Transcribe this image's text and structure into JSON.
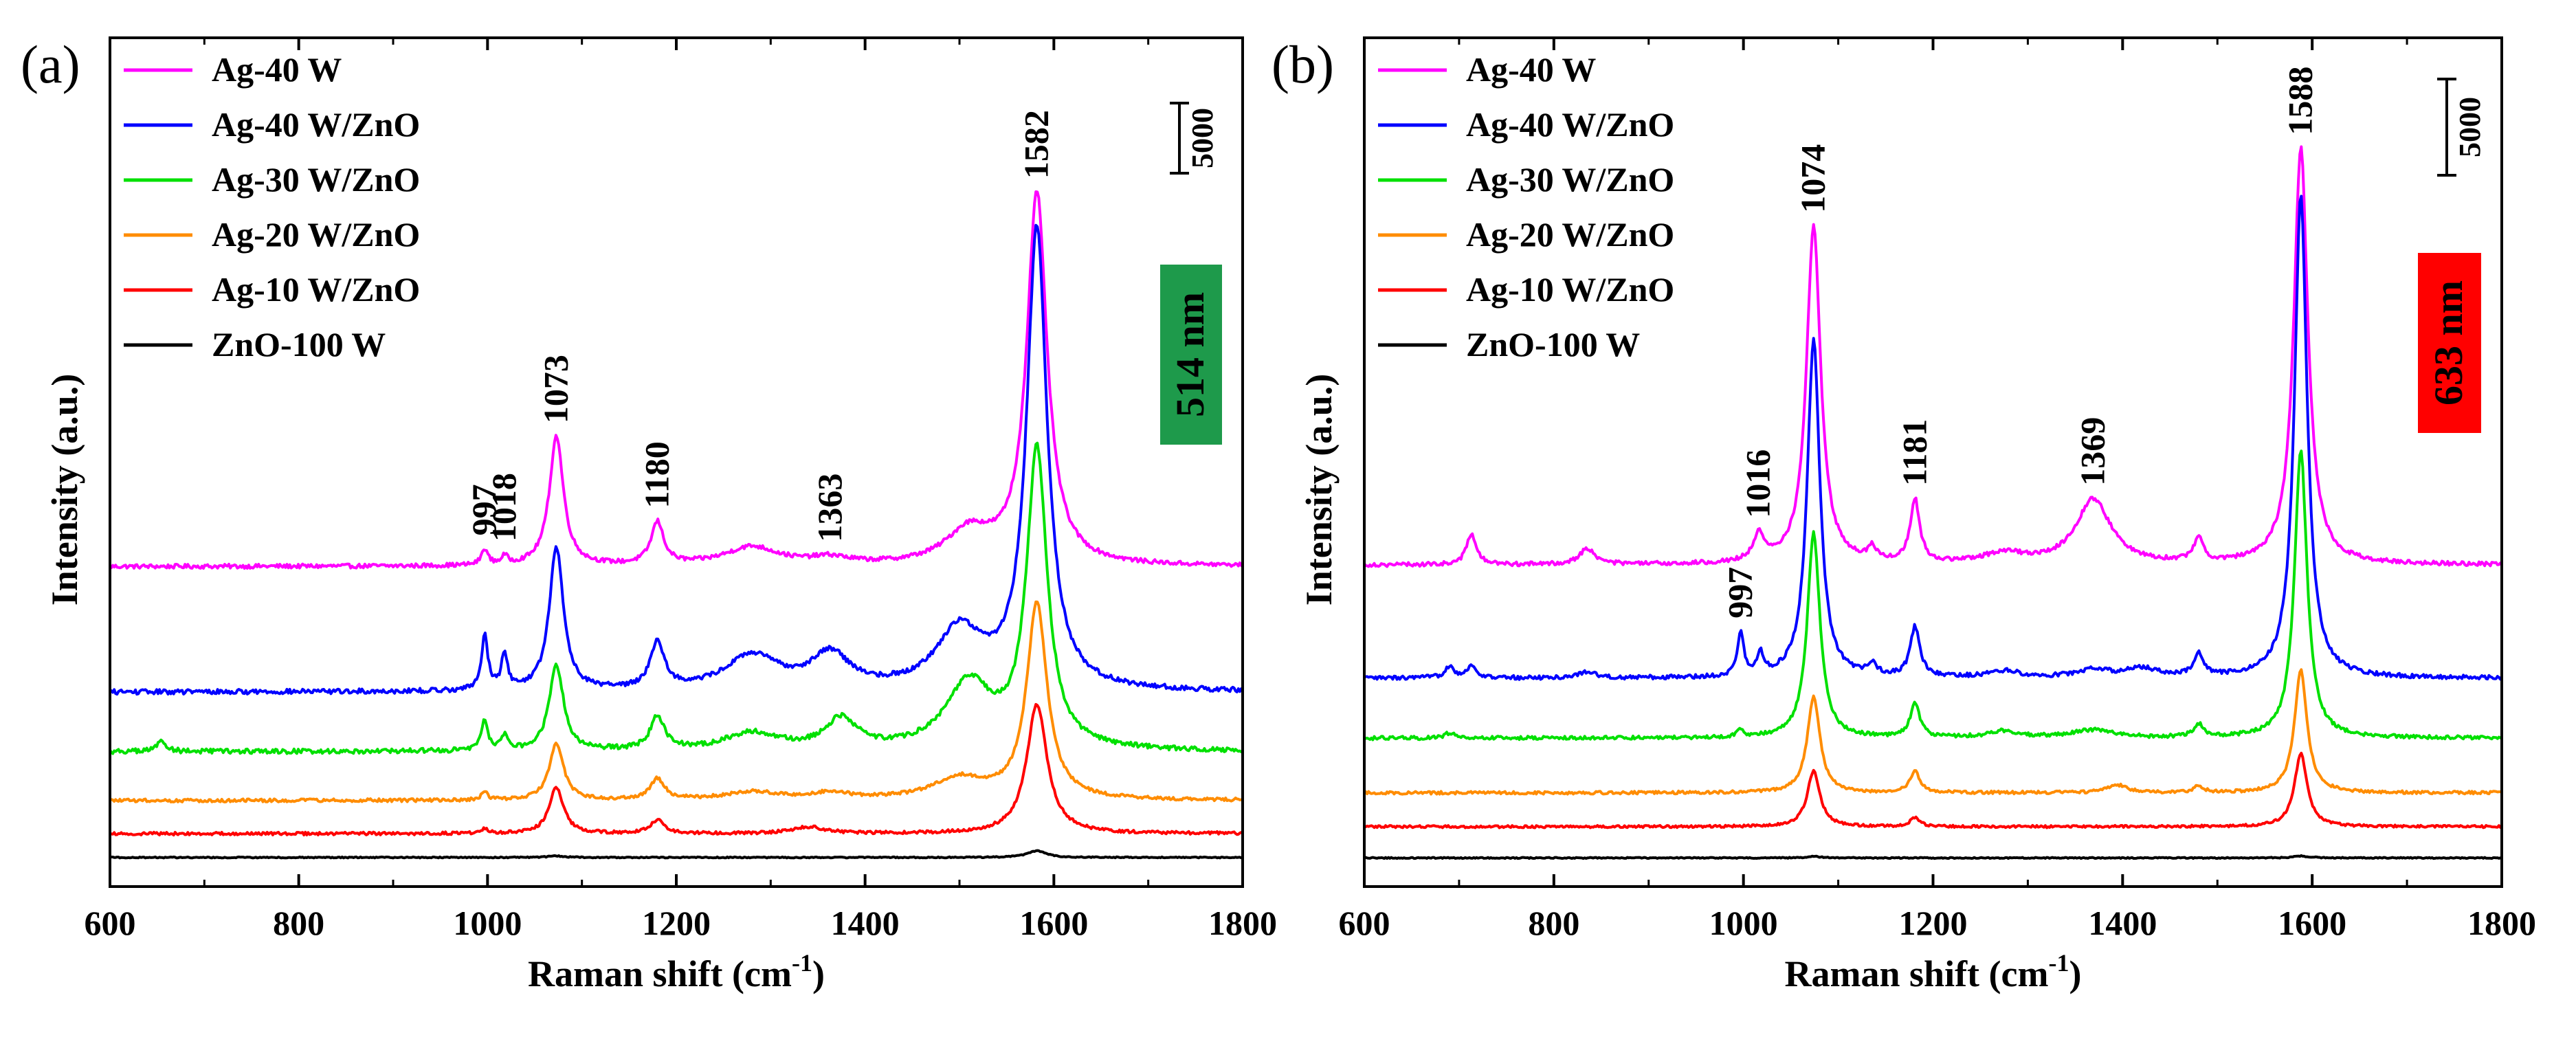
{
  "chart_data": [
    {
      "type": "line",
      "panel": "(a)",
      "xlabel": "Raman shift (cm",
      "xlabel_sup": "-1",
      "xlabel_tail": ")",
      "ylabel": "Intensity (a.u.)",
      "xlim": [
        600,
        1800
      ],
      "x_ticks": [
        "600",
        "800",
        "1000",
        "1200",
        "1400",
        "1600",
        "1800"
      ],
      "x_tick_values": [
        600,
        800,
        1000,
        1200,
        1400,
        1600,
        1800
      ],
      "laser_label": "514 nm",
      "laser_color": "#1e9a4b",
      "scale_bar_label": "5000",
      "peak_labels": [
        {
          "text": "997",
          "x": 997,
          "series": "Ag-40 W"
        },
        {
          "text": "1018",
          "x": 1018,
          "series": "Ag-40 W"
        },
        {
          "text": "1073",
          "x": 1073,
          "series": "Ag-40 W"
        },
        {
          "text": "1180",
          "x": 1180,
          "series": "Ag-40 W"
        },
        {
          "text": "1363",
          "x": 1363,
          "series": "Ag-40 W"
        },
        {
          "text": "1582",
          "x": 1582,
          "series": "Ag-40 W"
        }
      ],
      "series": [
        {
          "name": "Ag-40 W",
          "color": "#ff00ff",
          "baseline": 22000,
          "noise": 160,
          "peaks": [
            [
              997,
              1200,
              4
            ],
            [
              1018,
              600,
              4
            ],
            [
              1073,
              9800,
              9
            ],
            [
              1180,
              3200,
              8
            ],
            [
              1280,
              1400,
              35
            ],
            [
              1363,
              500,
              25
            ],
            [
              1510,
              2500,
              30
            ],
            [
              1582,
              28000,
              13
            ]
          ]
        },
        {
          "name": "Ag-40 W/ZnO",
          "color": "#0000ff",
          "baseline": 12500,
          "noise": 180,
          "peaks": [
            [
              997,
              4200,
              4
            ],
            [
              1018,
              2600,
              4
            ],
            [
              1073,
              10800,
              9
            ],
            [
              1180,
              3500,
              9
            ],
            [
              1280,
              2600,
              35
            ],
            [
              1363,
              2600,
              25
            ],
            [
              1500,
              4500,
              30
            ],
            [
              1582,
              34800,
              13
            ]
          ]
        },
        {
          "name": "Ag-30 W/ZnO",
          "color": "#00e000",
          "baseline": 8000,
          "noise": 180,
          "peaks": [
            [
              655,
              800,
              6
            ],
            [
              997,
              2400,
              4
            ],
            [
              1018,
              1100,
              4
            ],
            [
              1073,
              6500,
              9
            ],
            [
              1180,
              2500,
              9
            ],
            [
              1280,
              1300,
              35
            ],
            [
              1375,
              2300,
              20
            ],
            [
              1510,
              5000,
              30
            ],
            [
              1582,
              22500,
              13
            ]
          ]
        },
        {
          "name": "Ag-20 W/ZnO",
          "color": "#ff8c00",
          "baseline": 4300,
          "noise": 120,
          "peaks": [
            [
              997,
              600,
              4
            ],
            [
              1073,
              4300,
              9
            ],
            [
              1180,
              1600,
              9
            ],
            [
              1280,
              600,
              35
            ],
            [
              1363,
              500,
              25
            ],
            [
              1500,
              1600,
              35
            ],
            [
              1582,
              14800,
              13
            ]
          ]
        },
        {
          "name": "Ag-10 W/ZnO",
          "color": "#ff0000",
          "baseline": 1800,
          "noise": 110,
          "peaks": [
            [
              997,
              400,
              4
            ],
            [
              1073,
              3500,
              9
            ],
            [
              1180,
              1000,
              9
            ],
            [
              1340,
              500,
              20
            ],
            [
              1582,
              9800,
              13
            ]
          ]
        },
        {
          "name": "ZnO-100 W",
          "color": "#000000",
          "baseline": 0,
          "noise": 40,
          "peaks": [
            [
              1073,
              120,
              10
            ],
            [
              1582,
              500,
              12
            ]
          ]
        }
      ],
      "ylim": [
        -2200,
        62000
      ]
    },
    {
      "type": "line",
      "panel": "(b)",
      "xlabel": "Raman shift (cm",
      "xlabel_sup": "-1",
      "xlabel_tail": ")",
      "ylabel": "Intensity (a.u.)",
      "xlim": [
        600,
        1800
      ],
      "x_ticks": [
        "600",
        "800",
        "1000",
        "1200",
        "1400",
        "1600",
        "1800"
      ],
      "x_tick_values": [
        600,
        800,
        1000,
        1200,
        1400,
        1600,
        1800
      ],
      "laser_label": "633 nm",
      "laser_color": "#ff0000",
      "scale_bar_label": "5000",
      "peak_labels": [
        {
          "text": "1016",
          "x": 1016,
          "series": "Ag-40 W"
        },
        {
          "text": "1074",
          "x": 1074,
          "series": "Ag-40 W"
        },
        {
          "text": "1181",
          "x": 1181,
          "series": "Ag-40 W"
        },
        {
          "text": "1369",
          "x": 1369,
          "series": "Ag-40 W"
        },
        {
          "text": "1588",
          "x": 1588,
          "series": "Ag-40 W"
        },
        {
          "text": "997",
          "x": 997,
          "series": "Ag-40 W/ZnO"
        }
      ],
      "series": [
        {
          "name": "Ag-40 W",
          "color": "#ff00ff",
          "baseline": 22500,
          "noise": 160,
          "peaks": [
            [
              713,
              2400,
              6
            ],
            [
              835,
              1200,
              10
            ],
            [
              1016,
              2000,
              7
            ],
            [
              1074,
              26000,
              9
            ],
            [
              1136,
              1000,
              5
            ],
            [
              1181,
              4800,
              6
            ],
            [
              1275,
              800,
              25
            ],
            [
              1369,
              5000,
              22
            ],
            [
              1480,
              1800,
              6
            ],
            [
              1588,
              32000,
              9
            ]
          ]
        },
        {
          "name": "Ag-40 W/ZnO",
          "color": "#0000ff",
          "baseline": 13800,
          "noise": 160,
          "peaks": [
            [
              690,
              900,
              6
            ],
            [
              713,
              900,
              6
            ],
            [
              835,
              500,
              10
            ],
            [
              997,
              3300,
              4
            ],
            [
              1018,
              1600,
              4
            ],
            [
              1074,
              26000,
              8
            ],
            [
              1136,
              900,
              5
            ],
            [
              1181,
              3800,
              6
            ],
            [
              1275,
              500,
              20
            ],
            [
              1369,
              600,
              20
            ],
            [
              1420,
              700,
              20
            ],
            [
              1480,
              1700,
              6
            ],
            [
              1588,
              37000,
              8
            ]
          ]
        },
        {
          "name": "Ag-30 W/ZnO",
          "color": "#00e000",
          "baseline": 9200,
          "noise": 140,
          "peaks": [
            [
              690,
              400,
              6
            ],
            [
              997,
              600,
              4
            ],
            [
              1074,
              15800,
              8
            ],
            [
              1181,
              2600,
              6
            ],
            [
              1275,
              500,
              20
            ],
            [
              1369,
              600,
              25
            ],
            [
              1480,
              1000,
              6
            ],
            [
              1588,
              22000,
              8
            ]
          ]
        },
        {
          "name": "Ag-20 W/ZnO",
          "color": "#ff8c00",
          "baseline": 5000,
          "noise": 110,
          "peaks": [
            [
              1074,
              7400,
              8
            ],
            [
              1181,
              1700,
              6
            ],
            [
              1395,
              600,
              12
            ],
            [
              1480,
              500,
              6
            ],
            [
              1588,
              9400,
              8
            ]
          ]
        },
        {
          "name": "Ag-10 W/ZnO",
          "color": "#ff0000",
          "baseline": 2400,
          "noise": 90,
          "peaks": [
            [
              1074,
              4300,
              8
            ],
            [
              1181,
              700,
              6
            ],
            [
              1588,
              5600,
              8
            ]
          ]
        },
        {
          "name": "ZnO-100 W",
          "color": "#000000",
          "baseline": 0,
          "noise": 40,
          "peaks": [
            [
              1074,
              100,
              10
            ],
            [
              1588,
              150,
              10
            ]
          ]
        }
      ],
      "ylim": [
        -2200,
        63000
      ]
    }
  ]
}
